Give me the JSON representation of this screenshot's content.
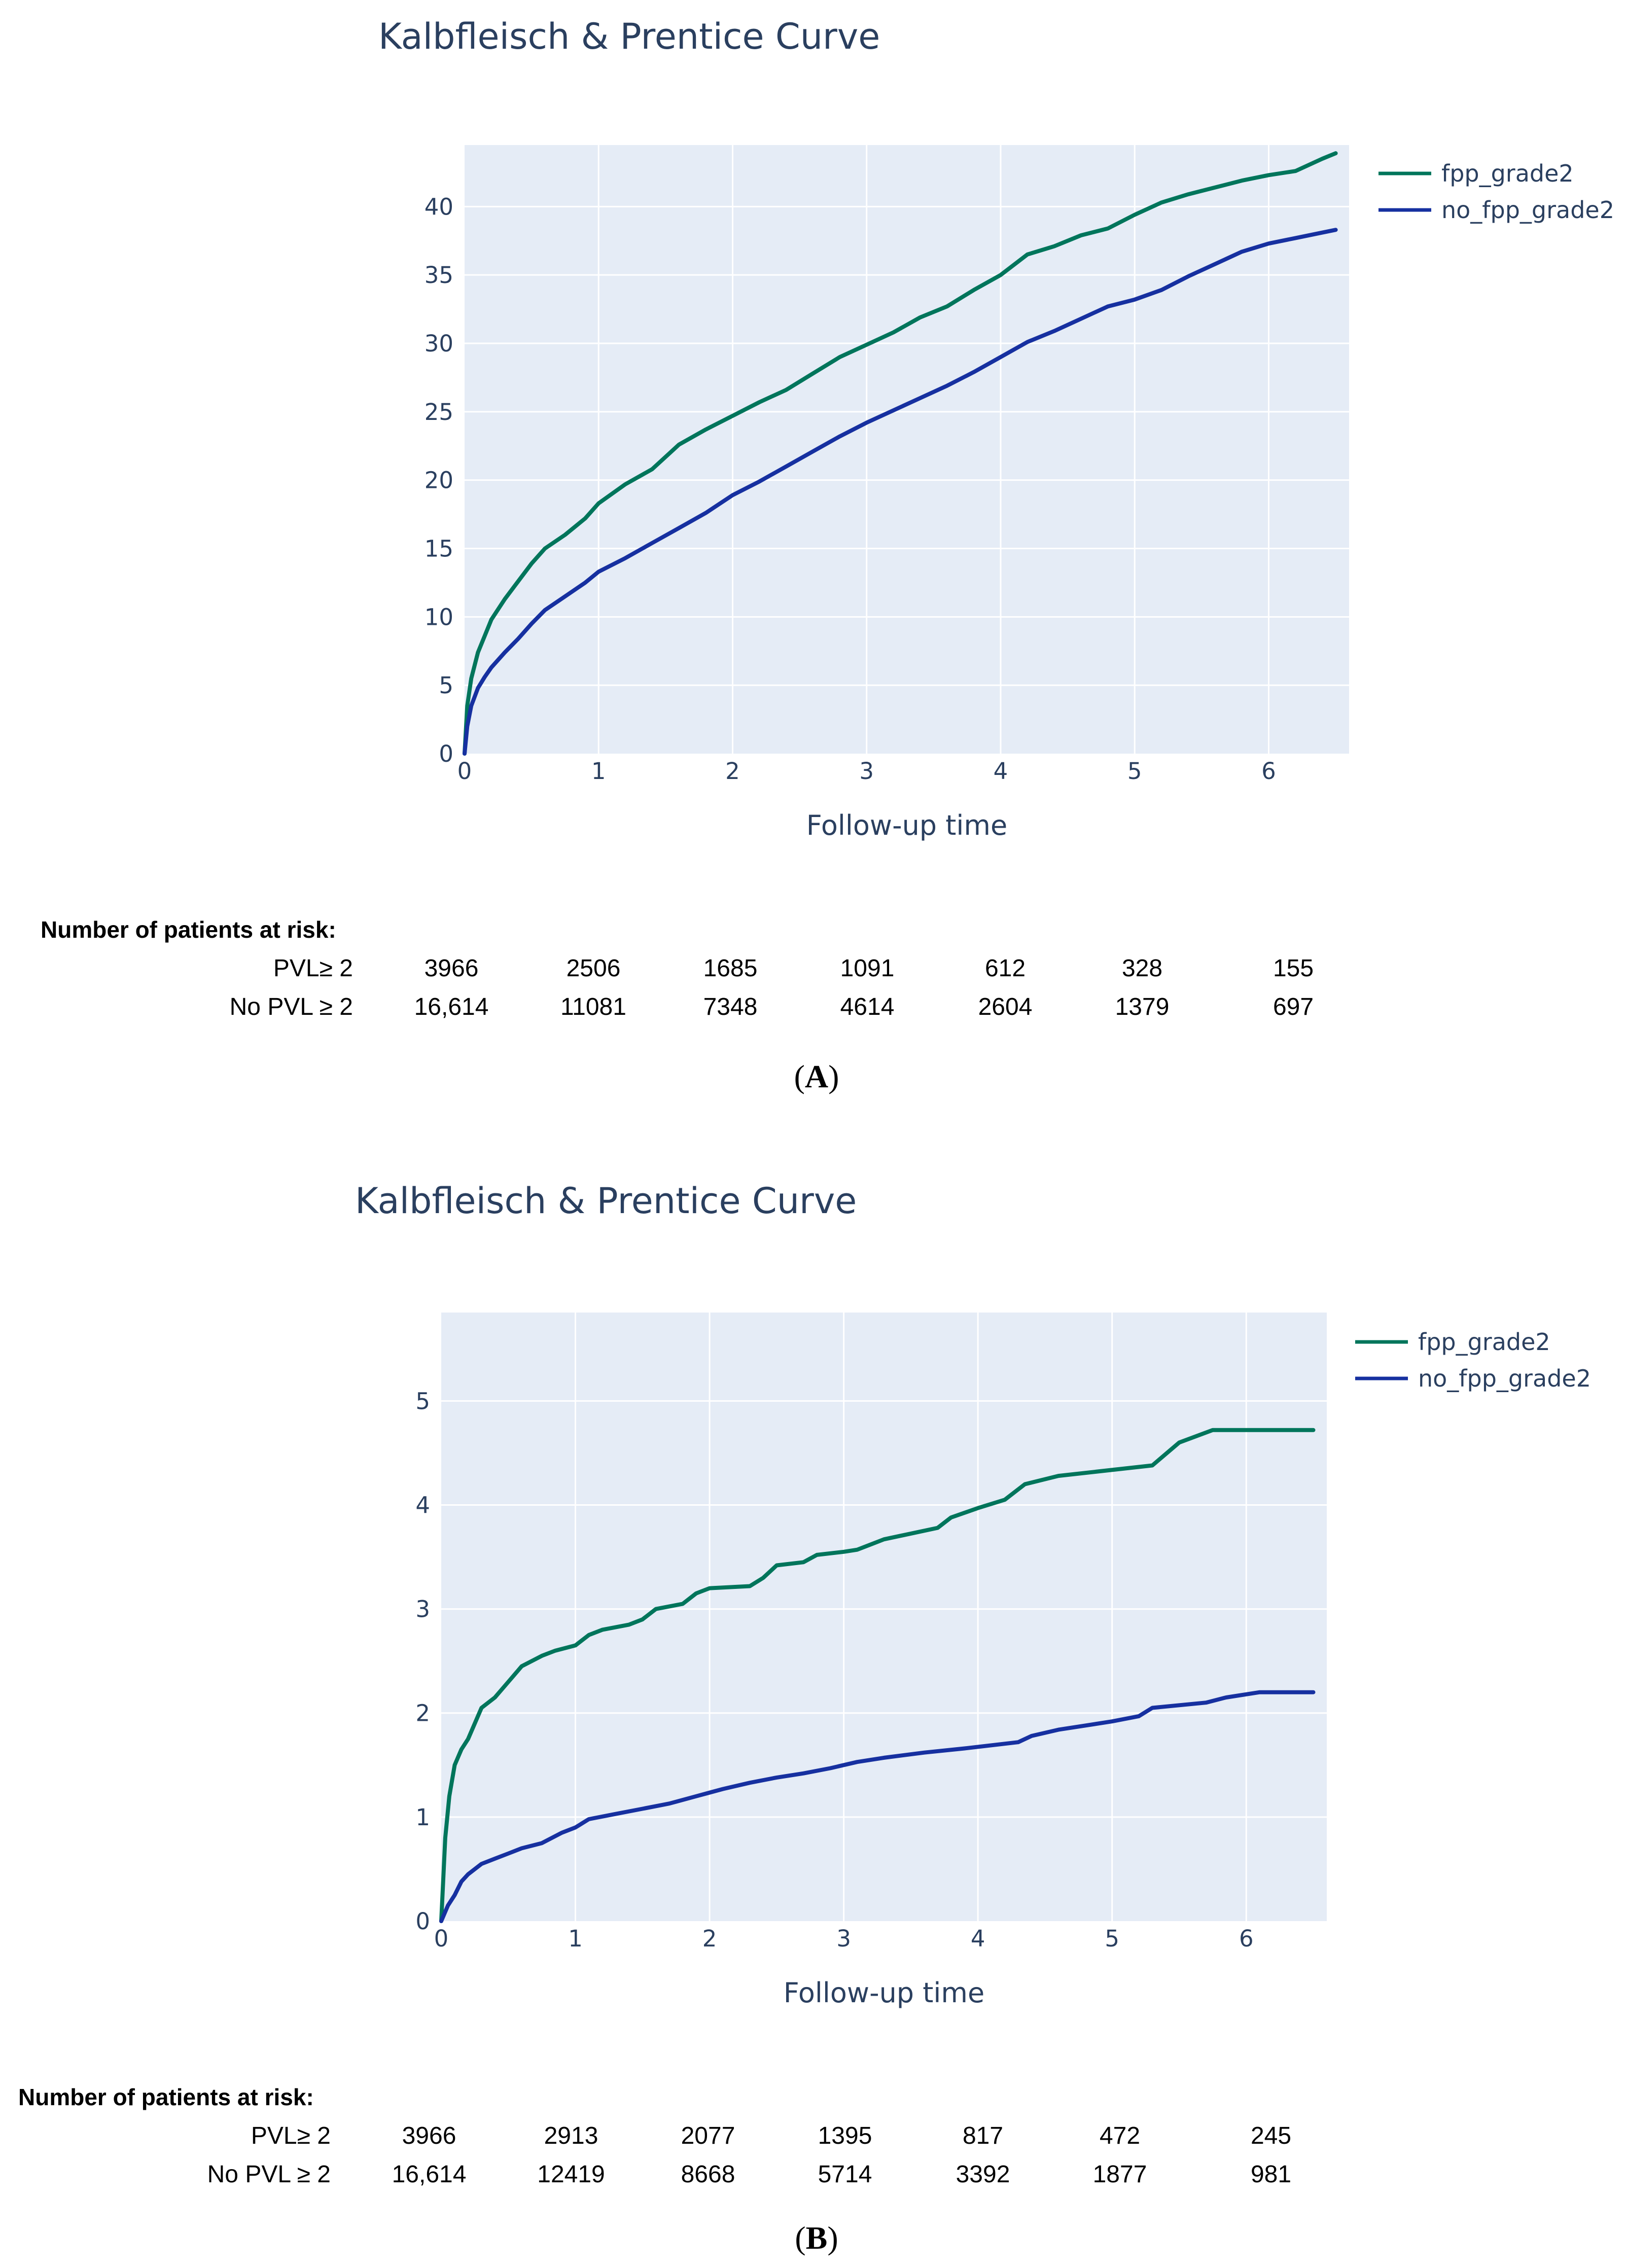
{
  "colors": {
    "plot_bg": "#e5ecf6",
    "grid": "#ffffff",
    "fpp_grade2": "#00755b",
    "no_fpp_grade2": "#1630a0",
    "text": "#2a3f5f"
  },
  "risk_table": {
    "header": "Number of patients at risk:"
  },
  "chart_data": [
    {
      "type": "line",
      "panel_label": "A",
      "title": "Kalbfleisch & Prentice Curve",
      "xlabel": "Follow-up time",
      "ylabel": "",
      "xlim": [
        0,
        6.6
      ],
      "ylim": [
        0,
        44.5
      ],
      "xticks": [
        0,
        1,
        2,
        3,
        4,
        5,
        6
      ],
      "yticks": [
        0,
        5,
        10,
        15,
        20,
        25,
        30,
        35,
        40
      ],
      "legend_position": "top-right outside",
      "series": [
        {
          "name": "fpp_grade2",
          "color": "#00755b",
          "x": [
            0,
            0.02,
            0.05,
            0.1,
            0.15,
            0.2,
            0.3,
            0.4,
            0.5,
            0.6,
            0.75,
            0.9,
            1.0,
            1.2,
            1.4,
            1.6,
            1.8,
            2.0,
            2.2,
            2.4,
            2.6,
            2.8,
            3.0,
            3.2,
            3.4,
            3.6,
            3.8,
            4.0,
            4.2,
            4.4,
            4.6,
            4.8,
            5.0,
            5.2,
            5.4,
            5.6,
            5.8,
            6.0,
            6.2,
            6.4,
            6.5
          ],
          "values": [
            0,
            3.5,
            5.5,
            7.4,
            8.6,
            9.8,
            11.3,
            12.6,
            13.9,
            15.0,
            16.0,
            17.2,
            18.3,
            19.7,
            20.8,
            22.6,
            23.7,
            24.7,
            25.7,
            26.6,
            27.8,
            29.0,
            29.9,
            30.8,
            31.9,
            32.7,
            33.9,
            35.0,
            36.5,
            37.1,
            37.9,
            38.4,
            39.4,
            40.3,
            40.9,
            41.4,
            41.9,
            42.3,
            42.6,
            43.5,
            43.9
          ]
        },
        {
          "name": "no_fpp_grade2",
          "color": "#1630a0",
          "x": [
            0,
            0.02,
            0.05,
            0.1,
            0.15,
            0.2,
            0.3,
            0.4,
            0.5,
            0.6,
            0.75,
            0.9,
            1.0,
            1.2,
            1.4,
            1.6,
            1.8,
            2.0,
            2.2,
            2.4,
            2.6,
            2.8,
            3.0,
            3.2,
            3.4,
            3.6,
            3.8,
            4.0,
            4.2,
            4.4,
            4.6,
            4.8,
            5.0,
            5.2,
            5.4,
            5.6,
            5.8,
            6.0,
            6.2,
            6.4,
            6.5
          ],
          "values": [
            0,
            2.0,
            3.5,
            4.8,
            5.6,
            6.3,
            7.4,
            8.4,
            9.5,
            10.5,
            11.5,
            12.5,
            13.3,
            14.3,
            15.4,
            16.5,
            17.6,
            18.9,
            19.9,
            21.0,
            22.1,
            23.2,
            24.2,
            25.1,
            26.0,
            26.9,
            27.9,
            29.0,
            30.1,
            30.9,
            31.8,
            32.7,
            33.2,
            33.9,
            34.9,
            35.8,
            36.7,
            37.3,
            37.7,
            38.1,
            38.3
          ]
        }
      ],
      "at_risk": {
        "rows": [
          {
            "label": "PVL≥ 2",
            "values": [
              "3966",
              "2506",
              "1685",
              "1091",
              "612",
              "328",
              "155"
            ]
          },
          {
            "label": "No PVL ≥ 2",
            "values": [
              "16,614",
              "11081",
              "7348",
              "4614",
              "2604",
              "1379",
              "697"
            ]
          }
        ]
      }
    },
    {
      "type": "line",
      "panel_label": "B",
      "title": "Kalbfleisch & Prentice Curve",
      "xlabel": "Follow-up time",
      "ylabel": "",
      "xlim": [
        0,
        6.6
      ],
      "ylim": [
        0,
        5.85
      ],
      "xticks": [
        0,
        1,
        2,
        3,
        4,
        5,
        6
      ],
      "yticks": [
        0,
        1,
        2,
        3,
        4,
        5
      ],
      "legend_position": "top-right outside",
      "series": [
        {
          "name": "fpp_grade2",
          "color": "#00755b",
          "x": [
            0,
            0.03,
            0.06,
            0.1,
            0.15,
            0.2,
            0.3,
            0.4,
            0.5,
            0.6,
            0.75,
            0.85,
            1.0,
            1.1,
            1.2,
            1.4,
            1.5,
            1.6,
            1.8,
            1.9,
            2.0,
            2.3,
            2.4,
            2.5,
            2.7,
            2.8,
            3.0,
            3.1,
            3.3,
            3.7,
            3.8,
            4.0,
            4.2,
            4.35,
            4.6,
            5.3,
            5.5,
            5.75,
            6.0,
            6.5
          ],
          "values": [
            0,
            0.8,
            1.2,
            1.5,
            1.65,
            1.75,
            2.05,
            2.15,
            2.3,
            2.45,
            2.55,
            2.6,
            2.65,
            2.75,
            2.8,
            2.85,
            2.9,
            3.0,
            3.05,
            3.15,
            3.2,
            3.22,
            3.3,
            3.42,
            3.45,
            3.52,
            3.55,
            3.57,
            3.67,
            3.78,
            3.88,
            3.97,
            4.05,
            4.2,
            4.28,
            4.38,
            4.6,
            4.72,
            4.72,
            4.72
          ]
        },
        {
          "name": "no_fpp_grade2",
          "color": "#1630a0",
          "x": [
            0,
            0.05,
            0.1,
            0.15,
            0.2,
            0.3,
            0.4,
            0.5,
            0.6,
            0.75,
            0.9,
            1.0,
            1.1,
            1.3,
            1.5,
            1.7,
            1.9,
            2.1,
            2.3,
            2.5,
            2.7,
            2.9,
            3.1,
            3.3,
            3.6,
            3.9,
            4.3,
            4.4,
            4.6,
            4.8,
            5.0,
            5.2,
            5.3,
            5.7,
            5.85,
            6.1,
            6.5
          ],
          "values": [
            0,
            0.15,
            0.25,
            0.38,
            0.45,
            0.55,
            0.6,
            0.65,
            0.7,
            0.75,
            0.85,
            0.9,
            0.98,
            1.03,
            1.08,
            1.13,
            1.2,
            1.27,
            1.33,
            1.38,
            1.42,
            1.47,
            1.53,
            1.57,
            1.62,
            1.66,
            1.72,
            1.78,
            1.84,
            1.88,
            1.92,
            1.97,
            2.05,
            2.1,
            2.15,
            2.2,
            2.2
          ]
        }
      ],
      "at_risk": {
        "rows": [
          {
            "label": "PVL≥ 2",
            "values": [
              "3966",
              "2913",
              "2077",
              "1395",
              "817",
              "472",
              "245"
            ]
          },
          {
            "label": "No PVL ≥ 2",
            "values": [
              "16,614",
              "12419",
              "8668",
              "5714",
              "3392",
              "1877",
              "981"
            ]
          }
        ]
      }
    }
  ]
}
